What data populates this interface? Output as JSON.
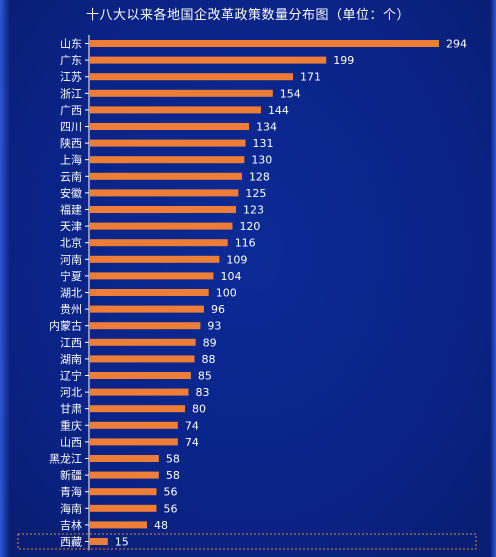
{
  "chart_data": {
    "type": "bar",
    "orientation": "horizontal",
    "title": "十八大以来各地国企改革政策数量分布图（单位：个）",
    "categories": [
      "山东",
      "广东",
      "江苏",
      "浙江",
      "广西",
      "四川",
      "陕西",
      "上海",
      "云南",
      "安徽",
      "福建",
      "天津",
      "北京",
      "河南",
      "宁夏",
      "湖北",
      "贵州",
      "内蒙古",
      "江西",
      "湖南",
      "辽宁",
      "河北",
      "甘肃",
      "重庆",
      "山西",
      "黑龙江",
      "新疆",
      "青海",
      "海南",
      "吉林",
      "西藏"
    ],
    "values": [
      294,
      199,
      171,
      154,
      144,
      134,
      131,
      130,
      128,
      125,
      123,
      120,
      116,
      109,
      104,
      100,
      96,
      93,
      89,
      88,
      85,
      83,
      80,
      74,
      74,
      58,
      58,
      56,
      56,
      48,
      15
    ],
    "xlim": [
      0,
      300
    ],
    "grid": false,
    "highlighted_category": "西藏",
    "colors": {
      "bar": "#ee7d38",
      "background": "#0a2386",
      "highlight_border": "#e8863a",
      "axis": "#ffffff"
    }
  }
}
